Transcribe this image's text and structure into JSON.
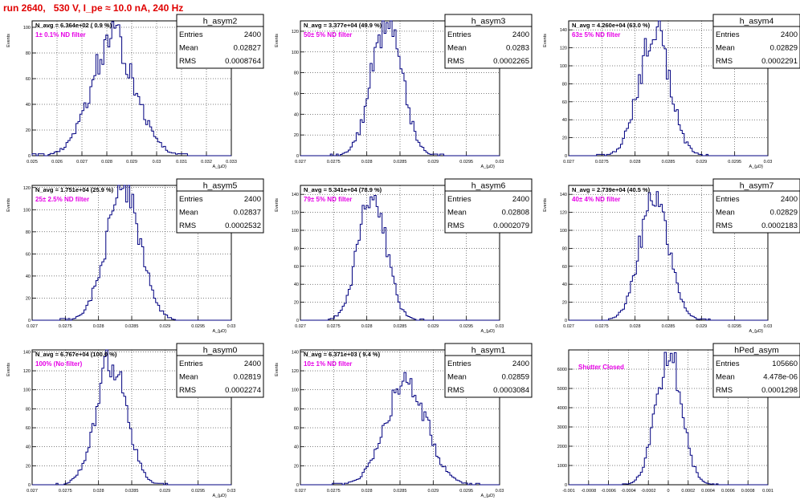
{
  "page_title": "run 2640,   530 V, I_pe ≈ 10.0 nA, 240 Hz",
  "chart_data": [
    {
      "type": "histogram",
      "name": "h_asym2",
      "annotation": "N_avg = 6.364e+02 ( 0.9 %)",
      "filter_label": "1± 0.1% ND filter",
      "stats": [
        {
          "label": "Entries",
          "value": "2400"
        },
        {
          "label": "Mean",
          "value": "0.02827"
        },
        {
          "label": "RMS",
          "value": "0.0008764"
        }
      ],
      "xlabel": "A_{μD}",
      "ylabel": "Events",
      "xlim": [
        0.025,
        0.033
      ],
      "ylim": [
        0,
        105
      ],
      "xticks": [
        0.025,
        0.026,
        0.027,
        0.028,
        0.029,
        0.03,
        0.031,
        0.032,
        0.033
      ],
      "xtick_labels": [
        "0.025",
        "0.026",
        "0.027",
        "0.028",
        "0.029",
        "0.03",
        "0.031",
        "0.032",
        "0.033"
      ],
      "yticks": [
        0,
        20,
        40,
        60,
        80,
        100
      ],
      "mean": 0.02827,
      "rms": 0.0008764,
      "peak": 90,
      "tail_threshold": 1
    },
    {
      "type": "histogram",
      "name": "h_asym3",
      "annotation": "N_avg = 3.377e+04 (49.9 %)",
      "filter_label": "50± 5% ND filter",
      "stats": [
        {
          "label": "Entries",
          "value": "2400"
        },
        {
          "label": "Mean",
          "value": "0.0283"
        },
        {
          "label": "RMS",
          "value": "0.0002265"
        }
      ],
      "xlabel": "A_{μD}",
      "ylabel": "Events",
      "xlim": [
        0.027,
        0.03
      ],
      "ylim": [
        0,
        130
      ],
      "xticks": [
        0.027,
        0.0275,
        0.028,
        0.0285,
        0.029,
        0.0295,
        0.03
      ],
      "xtick_labels": [
        "0.027",
        "0.0275",
        "0.028",
        "0.0285",
        "0.029",
        "0.0295",
        "0.03"
      ],
      "yticks": [
        0,
        20,
        40,
        60,
        80,
        100,
        120
      ],
      "mean": 0.0283,
      "rms": 0.0002265,
      "peak": 132,
      "tail_threshold": 1
    },
    {
      "type": "histogram",
      "name": "h_asym4",
      "annotation": "N_avg = 4.260e+04 (63.0 %)",
      "filter_label": "63± 5% ND filter",
      "stats": [
        {
          "label": "Entries",
          "value": "2400"
        },
        {
          "label": "Mean",
          "value": "0.02829"
        },
        {
          "label": "RMS",
          "value": "0.0002291"
        }
      ],
      "xlabel": "A_{μD}",
      "ylabel": "Events",
      "xlim": [
        0.027,
        0.03
      ],
      "ylim": [
        0,
        150
      ],
      "xticks": [
        0.027,
        0.0275,
        0.028,
        0.0285,
        0.029,
        0.0295,
        0.03
      ],
      "xtick_labels": [
        "0.027",
        "0.0275",
        "0.028",
        "0.0285",
        "0.029",
        "0.0295",
        "0.03"
      ],
      "yticks": [
        0,
        20,
        40,
        60,
        80,
        100,
        120,
        140
      ],
      "mean": 0.02829,
      "rms": 0.0002291,
      "peak": 140,
      "tail_threshold": 1
    },
    {
      "type": "histogram",
      "name": "h_asym5",
      "annotation": "N_avg = 1.751e+04 (25.9 %)",
      "filter_label": "25± 2.5% ND filter",
      "stats": [
        {
          "label": "Entries",
          "value": "2400"
        },
        {
          "label": "Mean",
          "value": "0.02837"
        },
        {
          "label": "RMS",
          "value": "0.0002532"
        }
      ],
      "xlabel": "A_{μD}",
      "ylabel": "Events",
      "xlim": [
        0.027,
        0.03
      ],
      "ylim": [
        0,
        122
      ],
      "xticks": [
        0.027,
        0.0275,
        0.028,
        0.0285,
        0.029,
        0.0295,
        0.03
      ],
      "xtick_labels": [
        "0.027",
        "0.0275",
        "0.028",
        "0.0285",
        "0.029",
        "0.0295",
        "0.03"
      ],
      "yticks": [
        0,
        20,
        40,
        60,
        80,
        100,
        120
      ],
      "mean": 0.02837,
      "rms": 0.0002532,
      "peak": 118,
      "tail_threshold": 1
    },
    {
      "type": "histogram",
      "name": "h_asym6",
      "annotation": "N_avg = 5.341e+04 (78.9 %)",
      "filter_label": "79± 5% ND filter",
      "stats": [
        {
          "label": "Entries",
          "value": "2400"
        },
        {
          "label": "Mean",
          "value": "0.02808"
        },
        {
          "label": "RMS",
          "value": "0.0002079"
        }
      ],
      "xlabel": "A_{μD}",
      "ylabel": "Events",
      "xlim": [
        0.027,
        0.03
      ],
      "ylim": [
        0,
        150
      ],
      "xticks": [
        0.027,
        0.0275,
        0.028,
        0.0285,
        0.029,
        0.0295,
        0.03
      ],
      "xtick_labels": [
        "0.027",
        "0.0275",
        "0.028",
        "0.0285",
        "0.029",
        "0.0295",
        "0.03"
      ],
      "yticks": [
        0,
        20,
        40,
        60,
        80,
        100,
        120,
        140
      ],
      "mean": 0.02808,
      "rms": 0.0002079,
      "peak": 142,
      "tail_threshold": 1
    },
    {
      "type": "histogram",
      "name": "h_asym7",
      "annotation": "N_avg = 2.739e+04 (40.5 %)",
      "filter_label": "40± 4% ND filter",
      "stats": [
        {
          "label": "Entries",
          "value": "2400"
        },
        {
          "label": "Mean",
          "value": "0.02829"
        },
        {
          "label": "RMS",
          "value": "0.0002183"
        }
      ],
      "xlabel": "A_{μD}",
      "ylabel": "Events",
      "xlim": [
        0.027,
        0.03
      ],
      "ylim": [
        0,
        150
      ],
      "xticks": [
        0.027,
        0.0275,
        0.028,
        0.0285,
        0.029,
        0.0295,
        0.03
      ],
      "xtick_labels": [
        "0.027",
        "0.0275",
        "0.028",
        "0.0285",
        "0.029",
        "0.0295",
        "0.03"
      ],
      "yticks": [
        0,
        20,
        40,
        60,
        80,
        100,
        120,
        140
      ],
      "mean": 0.02829,
      "rms": 0.0002183,
      "peak": 140,
      "tail_threshold": 1
    },
    {
      "type": "histogram",
      "name": "h_asym0",
      "annotation": "N_avg = 6.767e+04 (100.0 %)",
      "filter_label": "100% (No filter)",
      "stats": [
        {
          "label": "Entries",
          "value": "2400"
        },
        {
          "label": "Mean",
          "value": "0.02819"
        },
        {
          "label": "RMS",
          "value": "0.0002274"
        }
      ],
      "xlabel": "A_{μD}",
      "ylabel": "Events",
      "xlim": [
        0.027,
        0.03
      ],
      "ylim": [
        0,
        142
      ],
      "xticks": [
        0.027,
        0.0275,
        0.028,
        0.0285,
        0.029,
        0.0295,
        0.03
      ],
      "xtick_labels": [
        "0.027",
        "0.0275",
        "0.028",
        "0.0285",
        "0.029",
        "0.0295",
        "0.03"
      ],
      "yticks": [
        0,
        20,
        40,
        60,
        80,
        100,
        120,
        140
      ],
      "mean": 0.02819,
      "rms": 0.0002274,
      "peak": 132,
      "tail_threshold": 1
    },
    {
      "type": "histogram",
      "name": "h_asym1",
      "annotation": "N_avg = 6.371e+03 ( 9.4 %)",
      "filter_label": "10± 1% ND filter",
      "stats": [
        {
          "label": "Entries",
          "value": "2400"
        },
        {
          "label": "Mean",
          "value": "0.02859"
        },
        {
          "label": "RMS",
          "value": "0.0003084"
        }
      ],
      "xlabel": "A_{μD}",
      "ylabel": "Events",
      "xlim": [
        0.027,
        0.03
      ],
      "ylim": [
        0,
        142
      ],
      "xticks": [
        0.027,
        0.0275,
        0.028,
        0.0285,
        0.029,
        0.0295,
        0.03
      ],
      "xtick_labels": [
        "0.027",
        "0.0275",
        "0.028",
        "0.0285",
        "0.029",
        "0.0295",
        "0.03"
      ],
      "yticks": [
        0,
        20,
        40,
        60,
        80,
        100,
        120,
        140
      ],
      "mean": 0.02859,
      "rms": 0.0003084,
      "peak": 108,
      "tail_threshold": 1
    },
    {
      "type": "histogram",
      "name": "hPed_asym",
      "annotation": "",
      "filter_label": "Shutter Closed",
      "stats": [
        {
          "label": "Entries",
          "value": "105660"
        },
        {
          "label": "Mean",
          "value": "4.478e-06"
        },
        {
          "label": "RMS",
          "value": "0.0001298"
        }
      ],
      "xlabel": "",
      "ylabel": "",
      "xlim": [
        -0.001,
        0.001
      ],
      "ylim": [
        0,
        7000
      ],
      "xticks": [
        -0.001,
        -0.0008,
        -0.0006,
        -0.0004,
        -0.0002,
        0,
        0.0002,
        0.0004,
        0.0006,
        0.0008,
        0.001
      ],
      "xtick_labels": [
        "-0.001",
        "-0.0008",
        "-0.0006",
        "-0.0004",
        "-0.0002",
        "0",
        "0.0002",
        "0.0004",
        "0.0006",
        "0.0008",
        "0.001"
      ],
      "yticks": [
        0,
        1000,
        2000,
        3000,
        4000,
        5000,
        6000
      ],
      "mean": 4.478e-06,
      "rms": 0.0001298,
      "peak": 6750,
      "tail_threshold": 30
    }
  ]
}
